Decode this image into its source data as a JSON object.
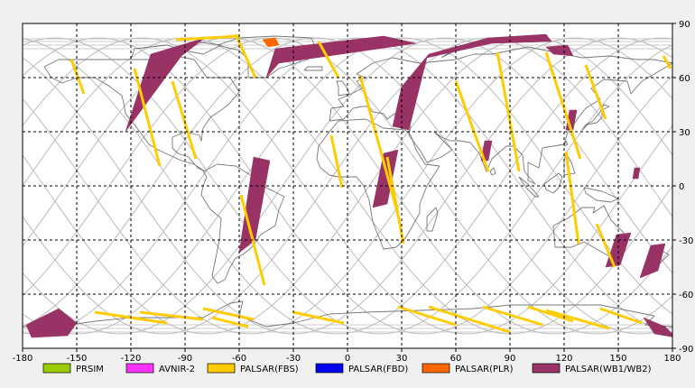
{
  "map": {
    "lon_range": [
      -180,
      180
    ],
    "lat_range": [
      -90,
      90
    ],
    "lon_ticks": [
      "-180",
      "-150",
      "-120",
      "-90",
      "-60",
      "-30",
      "0",
      "30",
      "60",
      "90",
      "120",
      "150",
      "180"
    ],
    "lat_ticks": [
      "90",
      "60",
      "30",
      "0",
      "-30",
      "-60",
      "-90"
    ],
    "grid": "dashed",
    "colors": {
      "background": "#ffffff",
      "coastline": "#777777",
      "orbit_track": "#bbbbbb",
      "grid": "#000000"
    }
  },
  "legend": [
    {
      "label": "PRSIM",
      "color": "#99cc00"
    },
    {
      "label": "AVNIR-2",
      "color": "#ff33ff"
    },
    {
      "label": "PALSAR(FBS)",
      "color": "#ffcc00"
    },
    {
      "label": "PALSAR(FBD)",
      "color": "#0000ee"
    },
    {
      "label": "PALSAR(PLR)",
      "color": "#ff6600"
    },
    {
      "label": "PALSAR(WB1/WB2)",
      "color": "#993366"
    }
  ],
  "wide_swaths": [
    {
      "lon": [
        -123,
        -109,
        -79,
        -92
      ],
      "lat": [
        30,
        73,
        82,
        72
      ],
      "type": "PALSAR(WB1/WB2)"
    },
    {
      "lon": [
        -45,
        -40,
        20,
        38,
        -38
      ],
      "lat": [
        60,
        76,
        83,
        79,
        68
      ],
      "type": "PALSAR(WB1/WB2)"
    },
    {
      "lon": [
        25,
        30,
        45,
        78,
        110,
        113,
        80,
        44,
        34
      ],
      "lat": [
        33,
        55,
        73,
        82,
        84,
        80,
        79,
        71,
        31
      ],
      "type": "PALSAR(WB1/WB2)"
    },
    {
      "lon": [
        -60,
        -51,
        -43,
        -52
      ],
      "lat": [
        -37,
        -30,
        14,
        16
      ],
      "type": "PALSAR(WB1/WB2)"
    },
    {
      "lon": [
        14,
        22,
        28,
        20
      ],
      "lat": [
        -12,
        -10,
        20,
        18
      ],
      "type": "PALSAR(WB1/WB2)"
    },
    {
      "lon": [
        143,
        151,
        157,
        149
      ],
      "lat": [
        -45,
        -44,
        -26,
        -27
      ],
      "type": "PALSAR(WB1/WB2)"
    },
    {
      "lon": [
        162,
        172,
        176,
        168
      ],
      "lat": [
        -51,
        -47,
        -32,
        -33
      ],
      "type": "PALSAR(WB1/WB2)"
    },
    {
      "lon": [
        -178,
        -160,
        -150,
        -155,
        -175
      ],
      "lat": [
        -77,
        -68,
        -76,
        -83,
        -84
      ],
      "type": "PALSAR(WB1/WB2)"
    },
    {
      "lon": [
        164,
        176,
        182,
        170
      ],
      "lat": [
        -73,
        -78,
        -84,
        -82
      ],
      "type": "PALSAR(WB1/WB2)"
    },
    {
      "lon": [
        110,
        122,
        125,
        114
      ],
      "lat": [
        77,
        78,
        72,
        73
      ],
      "type": "PALSAR(WB1/WB2)"
    },
    {
      "lon": [
        74,
        78,
        80,
        76
      ],
      "lat": [
        14,
        14,
        25,
        25
      ],
      "type": "PALSAR(WB1/WB2)"
    },
    {
      "lon": [
        121,
        125,
        127,
        123
      ],
      "lat": [
        31,
        31,
        42,
        42
      ],
      "type": "PALSAR(WB1/WB2)"
    },
    {
      "lon": [
        158,
        161,
        162,
        159
      ],
      "lat": [
        4,
        4,
        10,
        10
      ],
      "type": "PALSAR(WB1/WB2)"
    },
    {
      "lon": [
        -47,
        -40,
        -38,
        -44
      ],
      "lat": [
        81,
        82,
        78,
        77
      ],
      "type": "PALSAR(PLR)"
    }
  ],
  "strips": [
    {
      "lon": [
        -153,
        -146
      ],
      "lat": [
        70,
        51
      ],
      "type": "PALSAR(FBS)"
    },
    {
      "lon": [
        -118,
        -104
      ],
      "lat": [
        65,
        11
      ],
      "type": "PALSAR(FBS)"
    },
    {
      "lon": [
        -97,
        -84
      ],
      "lat": [
        58,
        15
      ],
      "type": "PALSAR(FBS)"
    },
    {
      "lon": [
        -59,
        -46
      ],
      "lat": [
        -5,
        -55
      ],
      "type": "PALSAR(FBS)"
    },
    {
      "lon": [
        -62,
        -51
      ],
      "lat": [
        84,
        60
      ],
      "type": "PALSAR(FBS)"
    },
    {
      "lon": [
        -9,
        -3
      ],
      "lat": [
        28,
        -1
      ],
      "type": "PALSAR(FBS)"
    },
    {
      "lon": [
        7,
        28
      ],
      "lat": [
        61,
        -16
      ],
      "type": "PALSAR(FBS)"
    },
    {
      "lon": [
        -16,
        -5
      ],
      "lat": [
        80,
        60
      ],
      "type": "PALSAR(FBS)"
    },
    {
      "lon": [
        22,
        31
      ],
      "lat": [
        16,
        -32
      ],
      "type": "PALSAR(FBS)"
    },
    {
      "lon": [
        60,
        78
      ],
      "lat": [
        58,
        8
      ],
      "type": "PALSAR(FBS)"
    },
    {
      "lon": [
        83,
        95
      ],
      "lat": [
        74,
        8
      ],
      "type": "PALSAR(FBS)"
    },
    {
      "lon": [
        110,
        129
      ],
      "lat": [
        74,
        15
      ],
      "type": "PALSAR(FBS)"
    },
    {
      "lon": [
        132,
        143
      ],
      "lat": [
        67,
        37
      ],
      "type": "PALSAR(FBS)"
    },
    {
      "lon": [
        121,
        128
      ],
      "lat": [
        19,
        -32
      ],
      "type": "PALSAR(FBS)"
    },
    {
      "lon": [
        138,
        148
      ],
      "lat": [
        -21,
        -45
      ],
      "type": "PALSAR(FBS)"
    },
    {
      "lon": [
        175,
        179
      ],
      "lat": [
        72,
        65
      ],
      "type": "PALSAR(FBS)"
    },
    {
      "lon": [
        -95,
        -60
      ],
      "lat": [
        81,
        83
      ],
      "type": "PALSAR(FBS)"
    },
    {
      "lon": [
        -140,
        -100
      ],
      "lat": [
        -70,
        -76
      ],
      "type": "PALSAR(FBS)"
    },
    {
      "lon": [
        -115,
        -80
      ],
      "lat": [
        -70,
        -74
      ],
      "type": "PALSAR(FBS)"
    },
    {
      "lon": [
        -80,
        -52
      ],
      "lat": [
        -68,
        -74
      ],
      "type": "PALSAR(FBS)"
    },
    {
      "lon": [
        -75,
        -55
      ],
      "lat": [
        -73,
        -78
      ],
      "type": "PALSAR(FBS)"
    },
    {
      "lon": [
        -30,
        -2
      ],
      "lat": [
        -70,
        -76
      ],
      "type": "PALSAR(FBS)"
    },
    {
      "lon": [
        28,
        60
      ],
      "lat": [
        -67,
        -77
      ],
      "type": "PALSAR(FBS)"
    },
    {
      "lon": [
        45,
        90
      ],
      "lat": [
        -67,
        -81
      ],
      "type": "PALSAR(FBS)"
    },
    {
      "lon": [
        75,
        108
      ],
      "lat": [
        -67,
        -77
      ],
      "type": "PALSAR(FBS)"
    },
    {
      "lon": [
        100,
        125
      ],
      "lat": [
        -67,
        -75
      ],
      "type": "PALSAR(FBS)"
    },
    {
      "lon": [
        110,
        145
      ],
      "lat": [
        -69,
        -79
      ],
      "type": "PALSAR(FBS)"
    },
    {
      "lon": [
        140,
        163
      ],
      "lat": [
        -68,
        -76
      ],
      "type": "PALSAR(FBS)"
    }
  ]
}
